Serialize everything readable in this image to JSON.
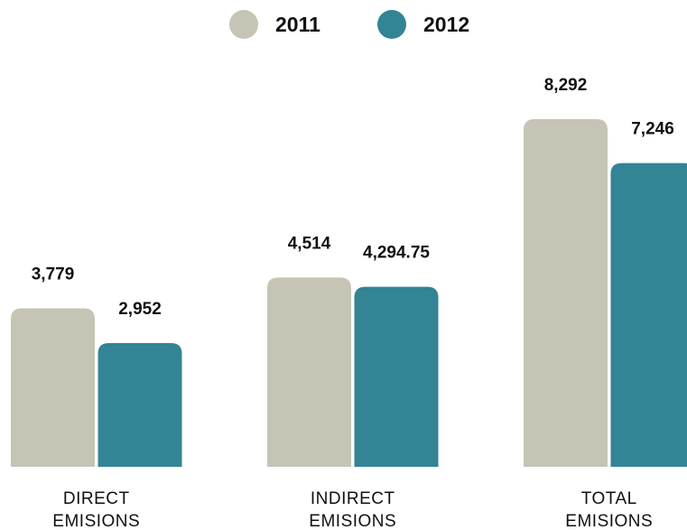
{
  "chart_data": {
    "type": "bar",
    "categories": [
      "DIRECT EMISIONS",
      "INDIRECT EMISIONS",
      "TOTAL EMISIONS"
    ],
    "series": [
      {
        "name": "2011",
        "color": "#c5c4b5",
        "values": [
          3779,
          4514,
          8292
        ],
        "value_labels": [
          "3,779",
          "4,514",
          "8,292"
        ]
      },
      {
        "name": "2012",
        "color": "#338494",
        "values": [
          2952,
          4294.75,
          7246
        ],
        "value_labels": [
          "2,952",
          "4,294.75",
          "7,246"
        ]
      }
    ],
    "legend": "top"
  }
}
